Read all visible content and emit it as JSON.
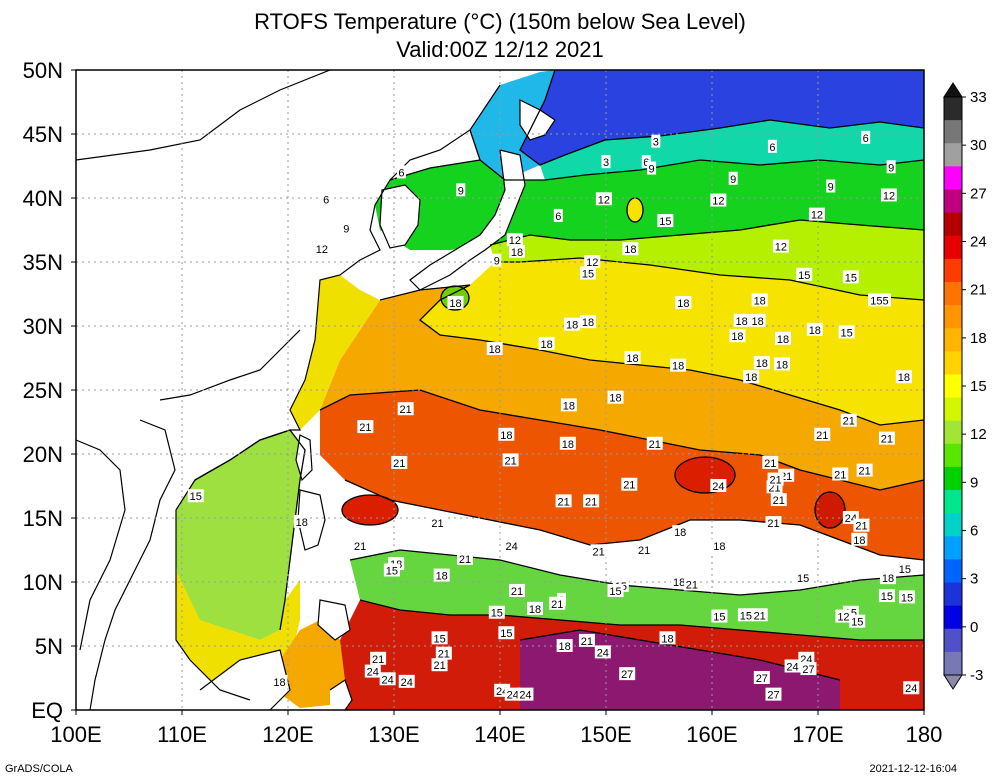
{
  "title_line1": "RTOFS Temperature (°C) (150m below Sea Level)",
  "title_line2": "Valid:00Z 12/12 2021",
  "footer_left": "GrADS/COLA",
  "footer_right": "2021-12-12-16:04",
  "map": {
    "lon_labels": [
      "100E",
      "110E",
      "120E",
      "130E",
      "140E",
      "150E",
      "160E",
      "170E",
      "180"
    ],
    "lat_labels": [
      "50N",
      "45N",
      "40N",
      "35N",
      "30N",
      "25N",
      "20N",
      "15N",
      "10N",
      "5N",
      "EQ"
    ],
    "lon_range": [
      100,
      180
    ],
    "lat_range": [
      0,
      50
    ],
    "grid": "dotted",
    "contour_labels": [
      {
        "lon": 154.7,
        "lat": 44.4,
        "text": "3"
      },
      {
        "lon": 150.0,
        "lat": 42.8,
        "text": "3"
      },
      {
        "lon": 165.7,
        "lat": 44.0,
        "text": "6"
      },
      {
        "lon": 174.5,
        "lat": 44.7,
        "text": "6"
      },
      {
        "lon": 130.7,
        "lat": 42.0,
        "text": "6"
      },
      {
        "lon": 123.6,
        "lat": 39.9,
        "text": "6"
      },
      {
        "lon": 153.8,
        "lat": 42.8,
        "text": "6"
      },
      {
        "lon": 145.5,
        "lat": 38.6,
        "text": "6"
      },
      {
        "lon": 154.3,
        "lat": 42.3,
        "text": "9"
      },
      {
        "lon": 125.5,
        "lat": 37.6,
        "text": "9"
      },
      {
        "lon": 136.3,
        "lat": 40.6,
        "text": "9"
      },
      {
        "lon": 162.0,
        "lat": 41.5,
        "text": "9"
      },
      {
        "lon": 171.2,
        "lat": 40.9,
        "text": "9"
      },
      {
        "lon": 176.9,
        "lat": 42.4,
        "text": "9"
      },
      {
        "lon": 139.7,
        "lat": 35.1,
        "text": "9"
      },
      {
        "lon": 123.2,
        "lat": 36.0,
        "text": "12"
      },
      {
        "lon": 149.8,
        "lat": 39.9,
        "text": "12"
      },
      {
        "lon": 160.6,
        "lat": 39.8,
        "text": "12"
      },
      {
        "lon": 169.9,
        "lat": 38.7,
        "text": "12"
      },
      {
        "lon": 176.7,
        "lat": 40.2,
        "text": "12"
      },
      {
        "lon": 166.5,
        "lat": 36.2,
        "text": "12"
      },
      {
        "lon": 141.4,
        "lat": 36.7,
        "text": "12"
      },
      {
        "lon": 148.7,
        "lat": 35.0,
        "text": "12"
      },
      {
        "lon": 141.6,
        "lat": 35.8,
        "text": "18"
      },
      {
        "lon": 152.3,
        "lat": 36.0,
        "text": "18"
      },
      {
        "lon": 155.6,
        "lat": 38.2,
        "text": "15"
      },
      {
        "lon": 148.3,
        "lat": 34.1,
        "text": "15"
      },
      {
        "lon": 168.7,
        "lat": 34.0,
        "text": "15"
      },
      {
        "lon": 173.1,
        "lat": 33.8,
        "text": "15"
      },
      {
        "lon": 175.8,
        "lat": 32.0,
        "text": "155"
      },
      {
        "lon": 172.7,
        "lat": 29.5,
        "text": "15"
      },
      {
        "lon": 178.1,
        "lat": 26.0,
        "text": "18"
      },
      {
        "lon": 135.8,
        "lat": 31.8,
        "text": "18"
      },
      {
        "lon": 157.3,
        "lat": 31.8,
        "text": "18"
      },
      {
        "lon": 164.5,
        "lat": 32.0,
        "text": "18"
      },
      {
        "lon": 146.8,
        "lat": 30.1,
        "text": "18"
      },
      {
        "lon": 148.3,
        "lat": 30.3,
        "text": "18"
      },
      {
        "lon": 162.8,
        "lat": 30.4,
        "text": "18"
      },
      {
        "lon": 164.3,
        "lat": 30.4,
        "text": "18"
      },
      {
        "lon": 162.4,
        "lat": 29.2,
        "text": "18"
      },
      {
        "lon": 166.7,
        "lat": 29.0,
        "text": "18"
      },
      {
        "lon": 169.7,
        "lat": 29.7,
        "text": "18"
      },
      {
        "lon": 139.5,
        "lat": 28.2,
        "text": "18"
      },
      {
        "lon": 144.4,
        "lat": 28.6,
        "text": "18"
      },
      {
        "lon": 152.5,
        "lat": 27.5,
        "text": "18"
      },
      {
        "lon": 156.8,
        "lat": 26.9,
        "text": "18"
      },
      {
        "lon": 164.7,
        "lat": 27.1,
        "text": "18"
      },
      {
        "lon": 166.6,
        "lat": 27.0,
        "text": "18"
      },
      {
        "lon": 163.7,
        "lat": 26.0,
        "text": "18"
      },
      {
        "lon": 150.9,
        "lat": 24.4,
        "text": "18"
      },
      {
        "lon": 146.5,
        "lat": 23.8,
        "text": "18"
      },
      {
        "lon": 140.6,
        "lat": 21.5,
        "text": "18"
      },
      {
        "lon": 146.4,
        "lat": 20.8,
        "text": "18"
      },
      {
        "lon": 131.1,
        "lat": 23.5,
        "text": "21"
      },
      {
        "lon": 127.3,
        "lat": 22.1,
        "text": "21"
      },
      {
        "lon": 130.5,
        "lat": 19.3,
        "text": "21"
      },
      {
        "lon": 141.0,
        "lat": 19.5,
        "text": "21"
      },
      {
        "lon": 154.6,
        "lat": 20.8,
        "text": "21"
      },
      {
        "lon": 152.2,
        "lat": 17.6,
        "text": "21"
      },
      {
        "lon": 146.0,
        "lat": 16.3,
        "text": "21"
      },
      {
        "lon": 148.6,
        "lat": 16.3,
        "text": "21"
      },
      {
        "lon": 165.5,
        "lat": 19.3,
        "text": "21"
      },
      {
        "lon": 174.4,
        "lat": 18.7,
        "text": "21"
      },
      {
        "lon": 172.1,
        "lat": 18.4,
        "text": "21"
      },
      {
        "lon": 165.9,
        "lat": 17.4,
        "text": "21"
      },
      {
        "lon": 167.0,
        "lat": 18.3,
        "text": "21"
      },
      {
        "lon": 166.0,
        "lat": 18.0,
        "text": "21"
      },
      {
        "lon": 172.9,
        "lat": 22.6,
        "text": "21"
      },
      {
        "lon": 170.4,
        "lat": 21.5,
        "text": "21"
      },
      {
        "lon": 176.5,
        "lat": 21.2,
        "text": "21"
      },
      {
        "lon": 166.3,
        "lat": 16.4,
        "text": "21"
      },
      {
        "lon": 165.8,
        "lat": 14.6,
        "text": "21"
      },
      {
        "lon": 134.1,
        "lat": 14.6,
        "text": "21"
      },
      {
        "lon": 126.8,
        "lat": 12.8,
        "text": "21"
      },
      {
        "lon": 136.7,
        "lat": 11.8,
        "text": "21"
      },
      {
        "lon": 149.3,
        "lat": 12.4,
        "text": "21"
      },
      {
        "lon": 153.6,
        "lat": 12.5,
        "text": "21"
      },
      {
        "lon": 160.6,
        "lat": 17.5,
        "text": "24"
      },
      {
        "lon": 141.1,
        "lat": 12.8,
        "text": "24"
      },
      {
        "lon": 173.1,
        "lat": 15.0,
        "text": "24"
      },
      {
        "lon": 174.1,
        "lat": 14.4,
        "text": "21"
      },
      {
        "lon": 173.9,
        "lat": 13.3,
        "text": "18"
      },
      {
        "lon": 121.3,
        "lat": 14.7,
        "text": "18"
      },
      {
        "lon": 130.2,
        "lat": 11.4,
        "text": "18"
      },
      {
        "lon": 129.8,
        "lat": 10.9,
        "text": "15"
      },
      {
        "lon": 134.5,
        "lat": 10.5,
        "text": "18"
      },
      {
        "lon": 157.0,
        "lat": 13.9,
        "text": "18"
      },
      {
        "lon": 160.7,
        "lat": 12.8,
        "text": "18"
      },
      {
        "lon": 156.9,
        "lat": 10.0,
        "text": "18"
      },
      {
        "lon": 158.1,
        "lat": 9.8,
        "text": "21"
      },
      {
        "lon": 168.6,
        "lat": 10.3,
        "text": "15"
      },
      {
        "lon": 176.6,
        "lat": 10.3,
        "text": "18"
      },
      {
        "lon": 178.2,
        "lat": 11.0,
        "text": "15"
      },
      {
        "lon": 176.5,
        "lat": 8.9,
        "text": "15"
      },
      {
        "lon": 173.1,
        "lat": 7.6,
        "text": "15"
      },
      {
        "lon": 178.4,
        "lat": 8.8,
        "text": "15"
      },
      {
        "lon": 172.4,
        "lat": 7.3,
        "text": "12"
      },
      {
        "lon": 173.7,
        "lat": 6.9,
        "text": "15"
      },
      {
        "lon": 145.8,
        "lat": 8.6,
        "text": "8"
      },
      {
        "lon": 145.4,
        "lat": 8.3,
        "text": "21"
      },
      {
        "lon": 141.6,
        "lat": 9.3,
        "text": "21"
      },
      {
        "lon": 151.4,
        "lat": 9.7,
        "text": "15"
      },
      {
        "lon": 150.9,
        "lat": 9.3,
        "text": "15"
      },
      {
        "lon": 143.3,
        "lat": 7.9,
        "text": "18"
      },
      {
        "lon": 139.7,
        "lat": 7.6,
        "text": "15"
      },
      {
        "lon": 164.5,
        "lat": 7.4,
        "text": "21"
      },
      {
        "lon": 163.2,
        "lat": 7.4,
        "text": "15"
      },
      {
        "lon": 160.7,
        "lat": 7.3,
        "text": "15"
      },
      {
        "lon": 134.3,
        "lat": 5.6,
        "text": "15"
      },
      {
        "lon": 140.6,
        "lat": 6.0,
        "text": "15"
      },
      {
        "lon": 148.2,
        "lat": 5.4,
        "text": "21"
      },
      {
        "lon": 146.1,
        "lat": 5.0,
        "text": "18"
      },
      {
        "lon": 155.8,
        "lat": 5.6,
        "text": "18"
      },
      {
        "lon": 149.7,
        "lat": 4.5,
        "text": "24"
      },
      {
        "lon": 134.3,
        "lat": 3.5,
        "text": "21"
      },
      {
        "lon": 134.7,
        "lat": 4.4,
        "text": "21"
      },
      {
        "lon": 128.5,
        "lat": 4.0,
        "text": "21"
      },
      {
        "lon": 128.0,
        "lat": 3.0,
        "text": "24"
      },
      {
        "lon": 129.4,
        "lat": 2.4,
        "text": "24"
      },
      {
        "lon": 152.0,
        "lat": 2.8,
        "text": "27"
      },
      {
        "lon": 164.7,
        "lat": 2.5,
        "text": "27"
      },
      {
        "lon": 168.9,
        "lat": 4.0,
        "text": "24"
      },
      {
        "lon": 167.6,
        "lat": 3.4,
        "text": "24"
      },
      {
        "lon": 165.8,
        "lat": 1.2,
        "text": "27"
      },
      {
        "lon": 169.1,
        "lat": 3.2,
        "text": "27"
      },
      {
        "lon": 119.2,
        "lat": 2.2,
        "text": "18"
      },
      {
        "lon": 131.2,
        "lat": 2.2,
        "text": "24"
      },
      {
        "lon": 140.2,
        "lat": 1.5,
        "text": "24"
      },
      {
        "lon": 141.2,
        "lat": 1.2,
        "text": "24"
      },
      {
        "lon": 142.4,
        "lat": 1.2,
        "text": "24"
      },
      {
        "lon": 178.8,
        "lat": 1.7,
        "text": "24"
      },
      {
        "lon": 111.3,
        "lat": 16.7,
        "text": "15"
      }
    ]
  },
  "colorbar": {
    "labels": [
      "33",
      "30",
      "27",
      "24",
      "21",
      "18",
      "15",
      "12",
      "9",
      "6",
      "3",
      "0",
      "-3"
    ],
    "colors": [
      "#2b2b2b",
      "#777777",
      "#a0a0a0",
      "#ff00ff",
      "#c00080",
      "#b40000",
      "#e60000",
      "#ff3c00",
      "#ff7300",
      "#ff9600",
      "#ffb400",
      "#ffd200",
      "#ffff00",
      "#d2f500",
      "#a0e632",
      "#5ae600",
      "#00d200",
      "#00e68c",
      "#00d2c8",
      "#00a0ff",
      "#0064ff",
      "#1e32dc",
      "#0000e6",
      "#5050c8",
      "#7878b4"
    ]
  }
}
